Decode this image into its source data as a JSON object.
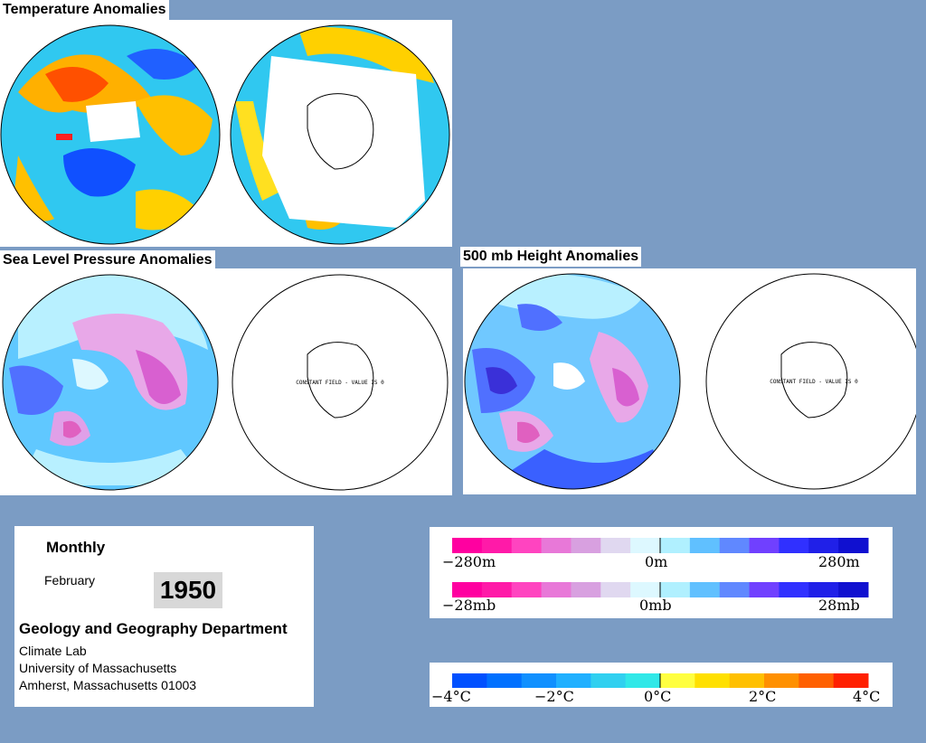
{
  "titles": {
    "temperature": "Temperature Anomalies",
    "slp": "Sea Level Pressure Anomalies",
    "height500": "500 mb Height Anomalies"
  },
  "map_notes": {
    "constant_field": "CONSTANT FIELD - VALUE IS 0"
  },
  "info": {
    "period": "Monthly",
    "month": "February",
    "year": "1950",
    "department": "Geology and Geography Department",
    "lab": "Climate Lab",
    "university": "University of Massachusetts",
    "address": "Amherst, Massachusetts 01003"
  },
  "legend_height": {
    "left": "−280m",
    "center": "0m",
    "right": "280m"
  },
  "legend_pressure": {
    "left": "−28mb",
    "center": "0mb",
    "right": "28mb"
  },
  "legend_temperature": {
    "t1": "−4°C",
    "t2": "−2°C",
    "t3": "0°C",
    "t4": "2°C",
    "t5": "4°C"
  },
  "colors": {
    "pressure_scale": [
      "#ff00a0",
      "#ff1aa8",
      "#ff44c0",
      "#e878d8",
      "#d8a0e0",
      "#e0d8f0",
      "#ddf8ff",
      "#b0f0ff",
      "#60c0ff",
      "#6088ff",
      "#7040ff",
      "#3030ff",
      "#2020e8",
      "#1010d0"
    ],
    "temperature_scale": [
      "#0050ff",
      "#0070ff",
      "#1090ff",
      "#20b0ff",
      "#30d0f0",
      "#30e8e8",
      "#ffff40",
      "#ffe000",
      "#ffc000",
      "#ff9000",
      "#ff6000",
      "#ff2000"
    ]
  }
}
